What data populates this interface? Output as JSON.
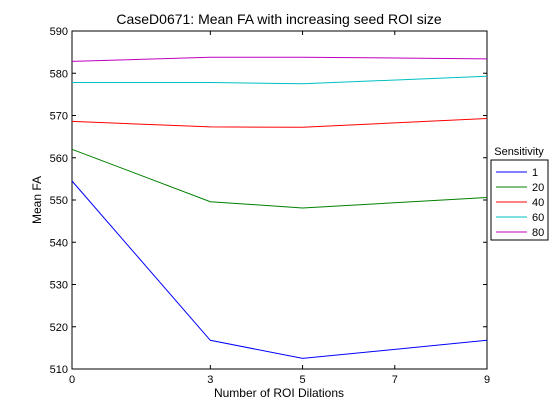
{
  "chart_data": {
    "type": "line",
    "title": "CaseD0671: Mean FA with increasing seed ROI size",
    "xlabel": "Number of ROI Dilations",
    "ylabel": "Mean FA",
    "x": [
      0,
      3,
      5,
      9
    ],
    "xticks": [
      0,
      3,
      5,
      7,
      9
    ],
    "xlim": [
      0,
      9
    ],
    "ylim": [
      510,
      590
    ],
    "yticks": [
      510,
      520,
      530,
      540,
      550,
      560,
      570,
      580,
      590
    ],
    "grid": false,
    "legend": {
      "title": "Sensitivity",
      "placement": "outside-right"
    },
    "series": [
      {
        "name": "1",
        "color": "#0000ff",
        "values": [
          554.5,
          516.8,
          512.5,
          516.8
        ]
      },
      {
        "name": "20",
        "color": "#008000",
        "values": [
          562.0,
          549.6,
          548.1,
          550.6
        ]
      },
      {
        "name": "40",
        "color": "#ff0000",
        "values": [
          568.6,
          567.3,
          567.2,
          569.3
        ]
      },
      {
        "name": "60",
        "color": "#00bfbf",
        "values": [
          577.8,
          577.8,
          577.5,
          579.3
        ]
      },
      {
        "name": "80",
        "color": "#bf00bf",
        "values": [
          582.8,
          583.8,
          583.8,
          583.4
        ]
      }
    ]
  }
}
